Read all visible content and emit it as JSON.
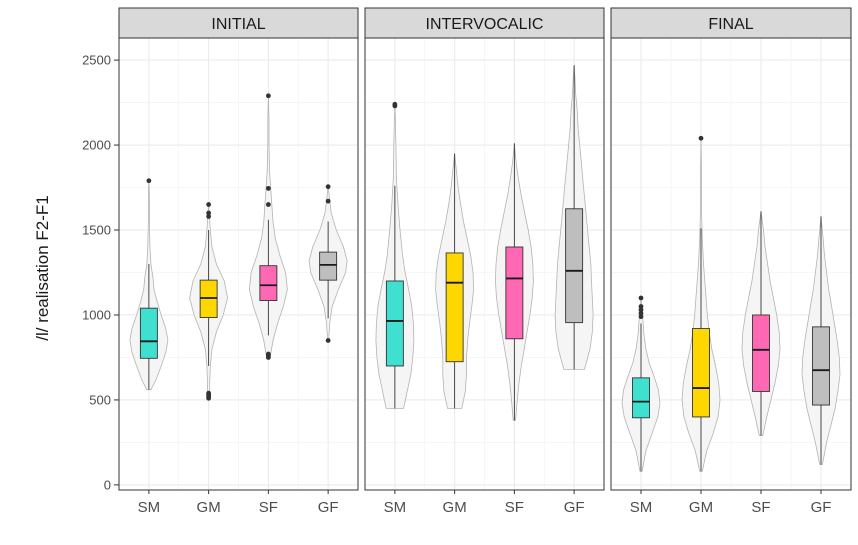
{
  "chart_data": {
    "type": "violin-boxplot",
    "ylabel": "/l/ realisation F2-F1",
    "xlabel": "",
    "ylim": [
      -30,
      2630
    ],
    "yticks": [
      0,
      500,
      1000,
      1500,
      2000,
      2500
    ],
    "categories": [
      "SM",
      "GM",
      "SF",
      "GF"
    ],
    "colors": {
      "SM": "#40E0D0",
      "GM": "#FFD700",
      "SF": "#FF69B4",
      "GF": "#BEBEBE"
    },
    "grid": true,
    "panels": [
      {
        "label": "INITIAL",
        "groups": [
          {
            "name": "SM",
            "min": 560,
            "q1": 745,
            "median": 845,
            "q3": 1040,
            "whisker_low": 560,
            "whisker_high": 1300,
            "max": 1800,
            "outliers": [
              1790
            ],
            "density": [
              [
                560,
                4
              ],
              [
                620,
                14
              ],
              [
                700,
                24
              ],
              [
                780,
                33
              ],
              [
                850,
                37
              ],
              [
                920,
                33
              ],
              [
                1000,
                24
              ],
              [
                1080,
                16
              ],
              [
                1150,
                10
              ],
              [
                1220,
                8
              ],
              [
                1300,
                4
              ],
              [
                1400,
                2
              ],
              [
                1550,
                1
              ],
              [
                1700,
                1
              ],
              [
                1800,
                0
              ]
            ]
          },
          {
            "name": "GM",
            "min": 510,
            "q1": 985,
            "median": 1100,
            "q3": 1205,
            "whisker_low": 700,
            "whisker_high": 1500,
            "max": 1660,
            "outliers": [
              510,
              520,
              530,
              540,
              1580,
              1600,
              1650
            ],
            "density": [
              [
                510,
                2
              ],
              [
                600,
                2
              ],
              [
                700,
                3
              ],
              [
                800,
                6
              ],
              [
                900,
                14
              ],
              [
                1000,
                26
              ],
              [
                1100,
                34
              ],
              [
                1200,
                28
              ],
              [
                1300,
                14
              ],
              [
                1400,
                6
              ],
              [
                1500,
                3
              ],
              [
                1600,
                1
              ],
              [
                1660,
                0
              ]
            ]
          },
          {
            "name": "SF",
            "min": 750,
            "q1": 1085,
            "median": 1175,
            "q3": 1290,
            "whisker_low": 880,
            "whisker_high": 1560,
            "max": 2290,
            "outliers": [
              750,
              760,
              770,
              1650,
              1745,
              2290
            ],
            "density": [
              [
                750,
                3
              ],
              [
                850,
                8
              ],
              [
                950,
                16
              ],
              [
                1050,
                26
              ],
              [
                1150,
                33
              ],
              [
                1250,
                30
              ],
              [
                1350,
                20
              ],
              [
                1450,
                12
              ],
              [
                1550,
                8
              ],
              [
                1650,
                6
              ],
              [
                1750,
                4
              ],
              [
                1850,
                2
              ],
              [
                2000,
                1
              ],
              [
                2150,
                1
              ],
              [
                2290,
                0
              ]
            ]
          },
          {
            "name": "GF",
            "min": 850,
            "q1": 1205,
            "median": 1295,
            "q3": 1370,
            "whisker_low": 980,
            "whisker_high": 1550,
            "max": 1760,
            "outliers": [
              850,
              1670,
              1755
            ],
            "density": [
              [
                850,
                1
              ],
              [
                950,
                3
              ],
              [
                1050,
                8
              ],
              [
                1150,
                20
              ],
              [
                1250,
                34
              ],
              [
                1320,
                37
              ],
              [
                1400,
                30
              ],
              [
                1500,
                16
              ],
              [
                1600,
                6
              ],
              [
                1700,
                2
              ],
              [
                1760,
                0
              ]
            ]
          }
        ]
      },
      {
        "label": "INTERVOCALIC",
        "groups": [
          {
            "name": "SM",
            "min": 450,
            "q1": 700,
            "median": 965,
            "q3": 1200,
            "whisker_low": 450,
            "whisker_high": 1760,
            "max": 2240,
            "outliers": [
              2230,
              2240
            ],
            "density": [
              [
                450,
                17
              ],
              [
                550,
                24
              ],
              [
                650,
                31
              ],
              [
                750,
                35
              ],
              [
                850,
                37
              ],
              [
                950,
                36
              ],
              [
                1050,
                33
              ],
              [
                1150,
                27
              ],
              [
                1250,
                20
              ],
              [
                1350,
                15
              ],
              [
                1500,
                10
              ],
              [
                1650,
                6
              ],
              [
                1800,
                3
              ],
              [
                2000,
                2
              ],
              [
                2150,
                1
              ],
              [
                2240,
                0
              ]
            ]
          },
          {
            "name": "GM",
            "min": 450,
            "q1": 725,
            "median": 1190,
            "q3": 1365,
            "whisker_low": 450,
            "whisker_high": 1950,
            "max": 1950,
            "outliers": [],
            "density": [
              [
                450,
                12
              ],
              [
                550,
                18
              ],
              [
                650,
                20
              ],
              [
                750,
                20
              ],
              [
                850,
                22
              ],
              [
                950,
                25
              ],
              [
                1050,
                29
              ],
              [
                1150,
                32
              ],
              [
                1250,
                31
              ],
              [
                1350,
                27
              ],
              [
                1450,
                21
              ],
              [
                1550,
                15
              ],
              [
                1650,
                10
              ],
              [
                1750,
                6
              ],
              [
                1850,
                3
              ],
              [
                1950,
                0
              ]
            ]
          },
          {
            "name": "SF",
            "min": 380,
            "q1": 860,
            "median": 1215,
            "q3": 1400,
            "whisker_low": 380,
            "whisker_high": 2010,
            "max": 2010,
            "outliers": [],
            "density": [
              [
                380,
                2
              ],
              [
                500,
                5
              ],
              [
                600,
                8
              ],
              [
                700,
                12
              ],
              [
                800,
                17
              ],
              [
                900,
                22
              ],
              [
                1000,
                27
              ],
              [
                1100,
                31
              ],
              [
                1200,
                33
              ],
              [
                1300,
                32
              ],
              [
                1400,
                29
              ],
              [
                1500,
                24
              ],
              [
                1600,
                18
              ],
              [
                1700,
                12
              ],
              [
                1800,
                7
              ],
              [
                1900,
                3
              ],
              [
                2010,
                0
              ]
            ]
          },
          {
            "name": "GF",
            "min": 680,
            "q1": 955,
            "median": 1260,
            "q3": 1625,
            "whisker_low": 680,
            "whisker_high": 2470,
            "max": 2470,
            "outliers": [],
            "density": [
              [
                680,
                13
              ],
              [
                800,
                20
              ],
              [
                900,
                23
              ],
              [
                1000,
                24
              ],
              [
                1100,
                23
              ],
              [
                1200,
                22
              ],
              [
                1300,
                21
              ],
              [
                1400,
                19
              ],
              [
                1500,
                17
              ],
              [
                1600,
                15
              ],
              [
                1700,
                13
              ],
              [
                1800,
                11
              ],
              [
                1900,
                9
              ],
              [
                2000,
                7
              ],
              [
                2100,
                5
              ],
              [
                2200,
                4
              ],
              [
                2300,
                2
              ],
              [
                2400,
                1
              ],
              [
                2470,
                0
              ]
            ]
          }
        ]
      },
      {
        "label": "FINAL",
        "groups": [
          {
            "name": "SM",
            "min": 80,
            "q1": 395,
            "median": 490,
            "q3": 630,
            "whisker_low": 80,
            "whisker_high": 950,
            "max": 1100,
            "outliers": [
              990,
              1010,
              1030,
              1050,
              1100
            ],
            "density": [
              [
                80,
                2
              ],
              [
                200,
                9
              ],
              [
                300,
                20
              ],
              [
                400,
                31
              ],
              [
                480,
                35
              ],
              [
                560,
                32
              ],
              [
                640,
                24
              ],
              [
                720,
                15
              ],
              [
                800,
                9
              ],
              [
                900,
                5
              ],
              [
                1000,
                3
              ],
              [
                1100,
                0
              ]
            ]
          },
          {
            "name": "GM",
            "min": 80,
            "q1": 400,
            "median": 570,
            "q3": 920,
            "whisker_low": 80,
            "whisker_high": 1510,
            "max": 2040,
            "outliers": [
              2040
            ],
            "density": [
              [
                80,
                2
              ],
              [
                200,
                9
              ],
              [
                300,
                19
              ],
              [
                400,
                27
              ],
              [
                500,
                30
              ],
              [
                600,
                28
              ],
              [
                700,
                23
              ],
              [
                800,
                17
              ],
              [
                900,
                13
              ],
              [
                1000,
                10
              ],
              [
                1100,
                8
              ],
              [
                1200,
                6
              ],
              [
                1300,
                4
              ],
              [
                1450,
                2
              ],
              [
                1600,
                1
              ],
              [
                1800,
                1
              ],
              [
                2040,
                0
              ]
            ]
          },
          {
            "name": "SF",
            "min": 290,
            "q1": 550,
            "median": 795,
            "q3": 1000,
            "whisker_low": 290,
            "whisker_high": 1610,
            "max": 1610,
            "outliers": [],
            "density": [
              [
                290,
                2
              ],
              [
                400,
                7
              ],
              [
                500,
                12
              ],
              [
                600,
                17
              ],
              [
                700,
                21
              ],
              [
                800,
                23
              ],
              [
                900,
                22
              ],
              [
                1000,
                19
              ],
              [
                1100,
                15
              ],
              [
                1200,
                11
              ],
              [
                1300,
                8
              ],
              [
                1400,
                5
              ],
              [
                1500,
                3
              ],
              [
                1610,
                0
              ]
            ]
          },
          {
            "name": "GF",
            "min": 120,
            "q1": 470,
            "median": 675,
            "q3": 930,
            "whisker_low": 120,
            "whisker_high": 1580,
            "max": 1580,
            "outliers": [],
            "density": [
              [
                120,
                2
              ],
              [
                250,
                8
              ],
              [
                350,
                14
              ],
              [
                450,
                20
              ],
              [
                550,
                24
              ],
              [
                650,
                27
              ],
              [
                750,
                26
              ],
              [
                850,
                23
              ],
              [
                950,
                19
              ],
              [
                1050,
                15
              ],
              [
                1150,
                11
              ],
              [
                1250,
                8
              ],
              [
                1350,
                5
              ],
              [
                1450,
                3
              ],
              [
                1580,
                0
              ]
            ]
          }
        ]
      }
    ]
  }
}
